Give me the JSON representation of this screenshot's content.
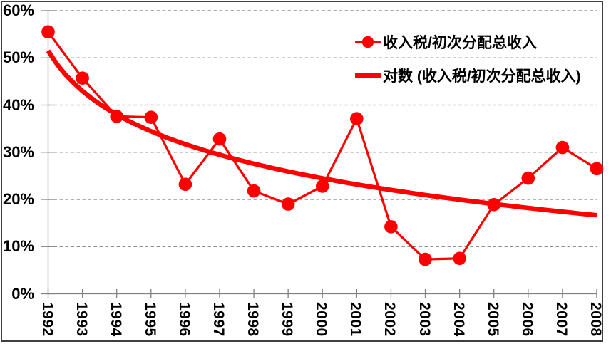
{
  "chart_data": {
    "type": "line",
    "title": "",
    "categories": [
      "1992",
      "1993",
      "1994",
      "1995",
      "1996",
      "1997",
      "1998",
      "1999",
      "2000",
      "2001",
      "2002",
      "2003",
      "2004",
      "2005",
      "2006",
      "2007",
      "2008"
    ],
    "series": [
      {
        "name": "收入税/初次分配总收入",
        "kind": "line-with-markers",
        "values": [
          55.5,
          45.7,
          37.6,
          37.4,
          23.2,
          32.8,
          21.8,
          19.0,
          22.8,
          37.1,
          14.2,
          7.3,
          7.5,
          18.9,
          24.5,
          31.0,
          26.5
        ]
      },
      {
        "name": "对数 (收入税/初次分配总收入)",
        "kind": "logarithmic-trendline",
        "formula": "y = 51.5 - 12.3*ln(t), t = 1..17",
        "a": 51.5,
        "b": 12.3,
        "values": [
          51.5,
          43.0,
          38.0,
          34.4,
          31.7,
          29.5,
          27.6,
          25.9,
          24.5,
          23.2,
          22.0,
          20.9,
          20.0,
          19.0,
          18.2,
          17.4,
          16.7
        ]
      }
    ],
    "unit": "%",
    "ylim": [
      0,
      60
    ],
    "ytick_step": 10,
    "ytick_labels": [
      "0%",
      "10%",
      "20%",
      "30%",
      "40%",
      "50%",
      "60%"
    ],
    "xlabel": "",
    "ylabel": "",
    "grid": "horizontal-dashed",
    "legend_position": "upper-right-inside",
    "x_labels_rotated_90": true,
    "colors": {
      "series": "#FF0000",
      "trendline": "#FF0000",
      "grid": "#808080",
      "axis": "#808080",
      "text": "#000000",
      "frame": "#404040",
      "background": "#FFFFFF"
    }
  }
}
